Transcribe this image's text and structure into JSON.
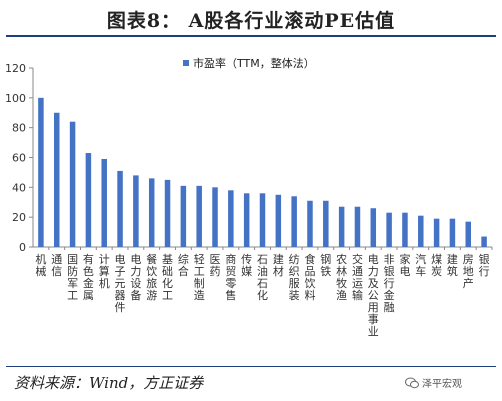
{
  "title": "图表8：  A股各行业滚动PE估值",
  "source": "资料来源：Wind，方正证券",
  "watermark": "泽平宏观",
  "colors": {
    "bar": "#4472C4",
    "rule": "#1f3f7a"
  },
  "chart_data": {
    "type": "bar",
    "legend_position": "top-center",
    "grid": false,
    "ylim": [
      0,
      120
    ],
    "yticks": [
      0,
      20,
      40,
      60,
      80,
      100,
      120
    ],
    "categories": [
      "机械",
      "通信",
      "国防军工",
      "有色金属",
      "计算机",
      "电子元器件",
      "电力设备",
      "餐饮旅游",
      "基础化工",
      "综合",
      "轻工制造",
      "医药",
      "商贸零售",
      "传媒",
      "石油石化",
      "建材",
      "纺织服装",
      "食品饮料",
      "钢铁",
      "农林牧渔",
      "交通运输",
      "电力及公用事业",
      "非银行金融",
      "家电",
      "汽车",
      "煤炭",
      "建筑",
      "房地产",
      "银行"
    ],
    "series": [
      {
        "name": "市盈率（TTM，整体法）",
        "values": [
          100,
          90,
          84,
          63,
          59,
          51,
          48,
          46,
          45,
          41,
          41,
          40,
          38,
          36,
          36,
          35,
          34,
          31,
          31,
          27,
          27,
          26,
          23,
          23,
          21,
          19,
          19,
          17,
          7
        ]
      }
    ]
  }
}
